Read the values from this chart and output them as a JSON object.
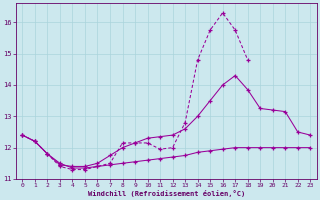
{
  "x": [
    0,
    1,
    2,
    3,
    4,
    5,
    6,
    7,
    8,
    9,
    10,
    11,
    12,
    13,
    14,
    15,
    16,
    17,
    18,
    19,
    20,
    21,
    22,
    23
  ],
  "line1_x": [
    0,
    1,
    2,
    3,
    4,
    5,
    6,
    7,
    8,
    9,
    10,
    11,
    12,
    13,
    14,
    15,
    16,
    17,
    18
  ],
  "line1_y": [
    12.4,
    12.2,
    11.8,
    11.4,
    11.3,
    11.3,
    11.4,
    11.5,
    12.15,
    12.15,
    12.15,
    11.95,
    12.0,
    12.8,
    14.8,
    15.75,
    16.3,
    15.75,
    14.8
  ],
  "line1_dashes": [
    4,
    2
  ],
  "line2_x": [
    0,
    1,
    2,
    3,
    4,
    5,
    6,
    7,
    8,
    9,
    10,
    11,
    12,
    13,
    14,
    15,
    16,
    17,
    18,
    19,
    20,
    21,
    22,
    23
  ],
  "line2_y": [
    12.4,
    12.2,
    11.8,
    11.45,
    11.4,
    11.4,
    11.5,
    11.75,
    12.0,
    12.15,
    12.3,
    12.35,
    12.4,
    12.6,
    13.0,
    13.5,
    14.0,
    14.3,
    13.85,
    13.25,
    13.2,
    13.15,
    12.5,
    12.4
  ],
  "line3_x": [
    0,
    1,
    2,
    3,
    4,
    5,
    6,
    7,
    8,
    9,
    10,
    11,
    12,
    13,
    14,
    15,
    16,
    17,
    18,
    19,
    20,
    21,
    22,
    23
  ],
  "line3_y": [
    12.4,
    12.2,
    11.8,
    11.5,
    11.35,
    11.35,
    11.4,
    11.45,
    11.5,
    11.55,
    11.6,
    11.65,
    11.7,
    11.75,
    11.85,
    11.9,
    11.95,
    12.0,
    12.0,
    12.0,
    12.0,
    12.0,
    12.0,
    12.0
  ],
  "bg_color": "#cce8ee",
  "grid_color": "#aad4dc",
  "line_color": "#990099",
  "xlabel": "Windchill (Refroidissement éolien,°C)",
  "xlabel_color": "#660066",
  "tick_color": "#660066",
  "axis_color": "#660066",
  "ylim": [
    11.0,
    16.6
  ],
  "xlim": [
    -0.5,
    23.5
  ],
  "yticks": [
    11,
    12,
    13,
    14,
    15,
    16
  ],
  "xticks": [
    0,
    1,
    2,
    3,
    4,
    5,
    6,
    7,
    8,
    9,
    10,
    11,
    12,
    13,
    14,
    15,
    16,
    17,
    18,
    19,
    20,
    21,
    22,
    23
  ]
}
